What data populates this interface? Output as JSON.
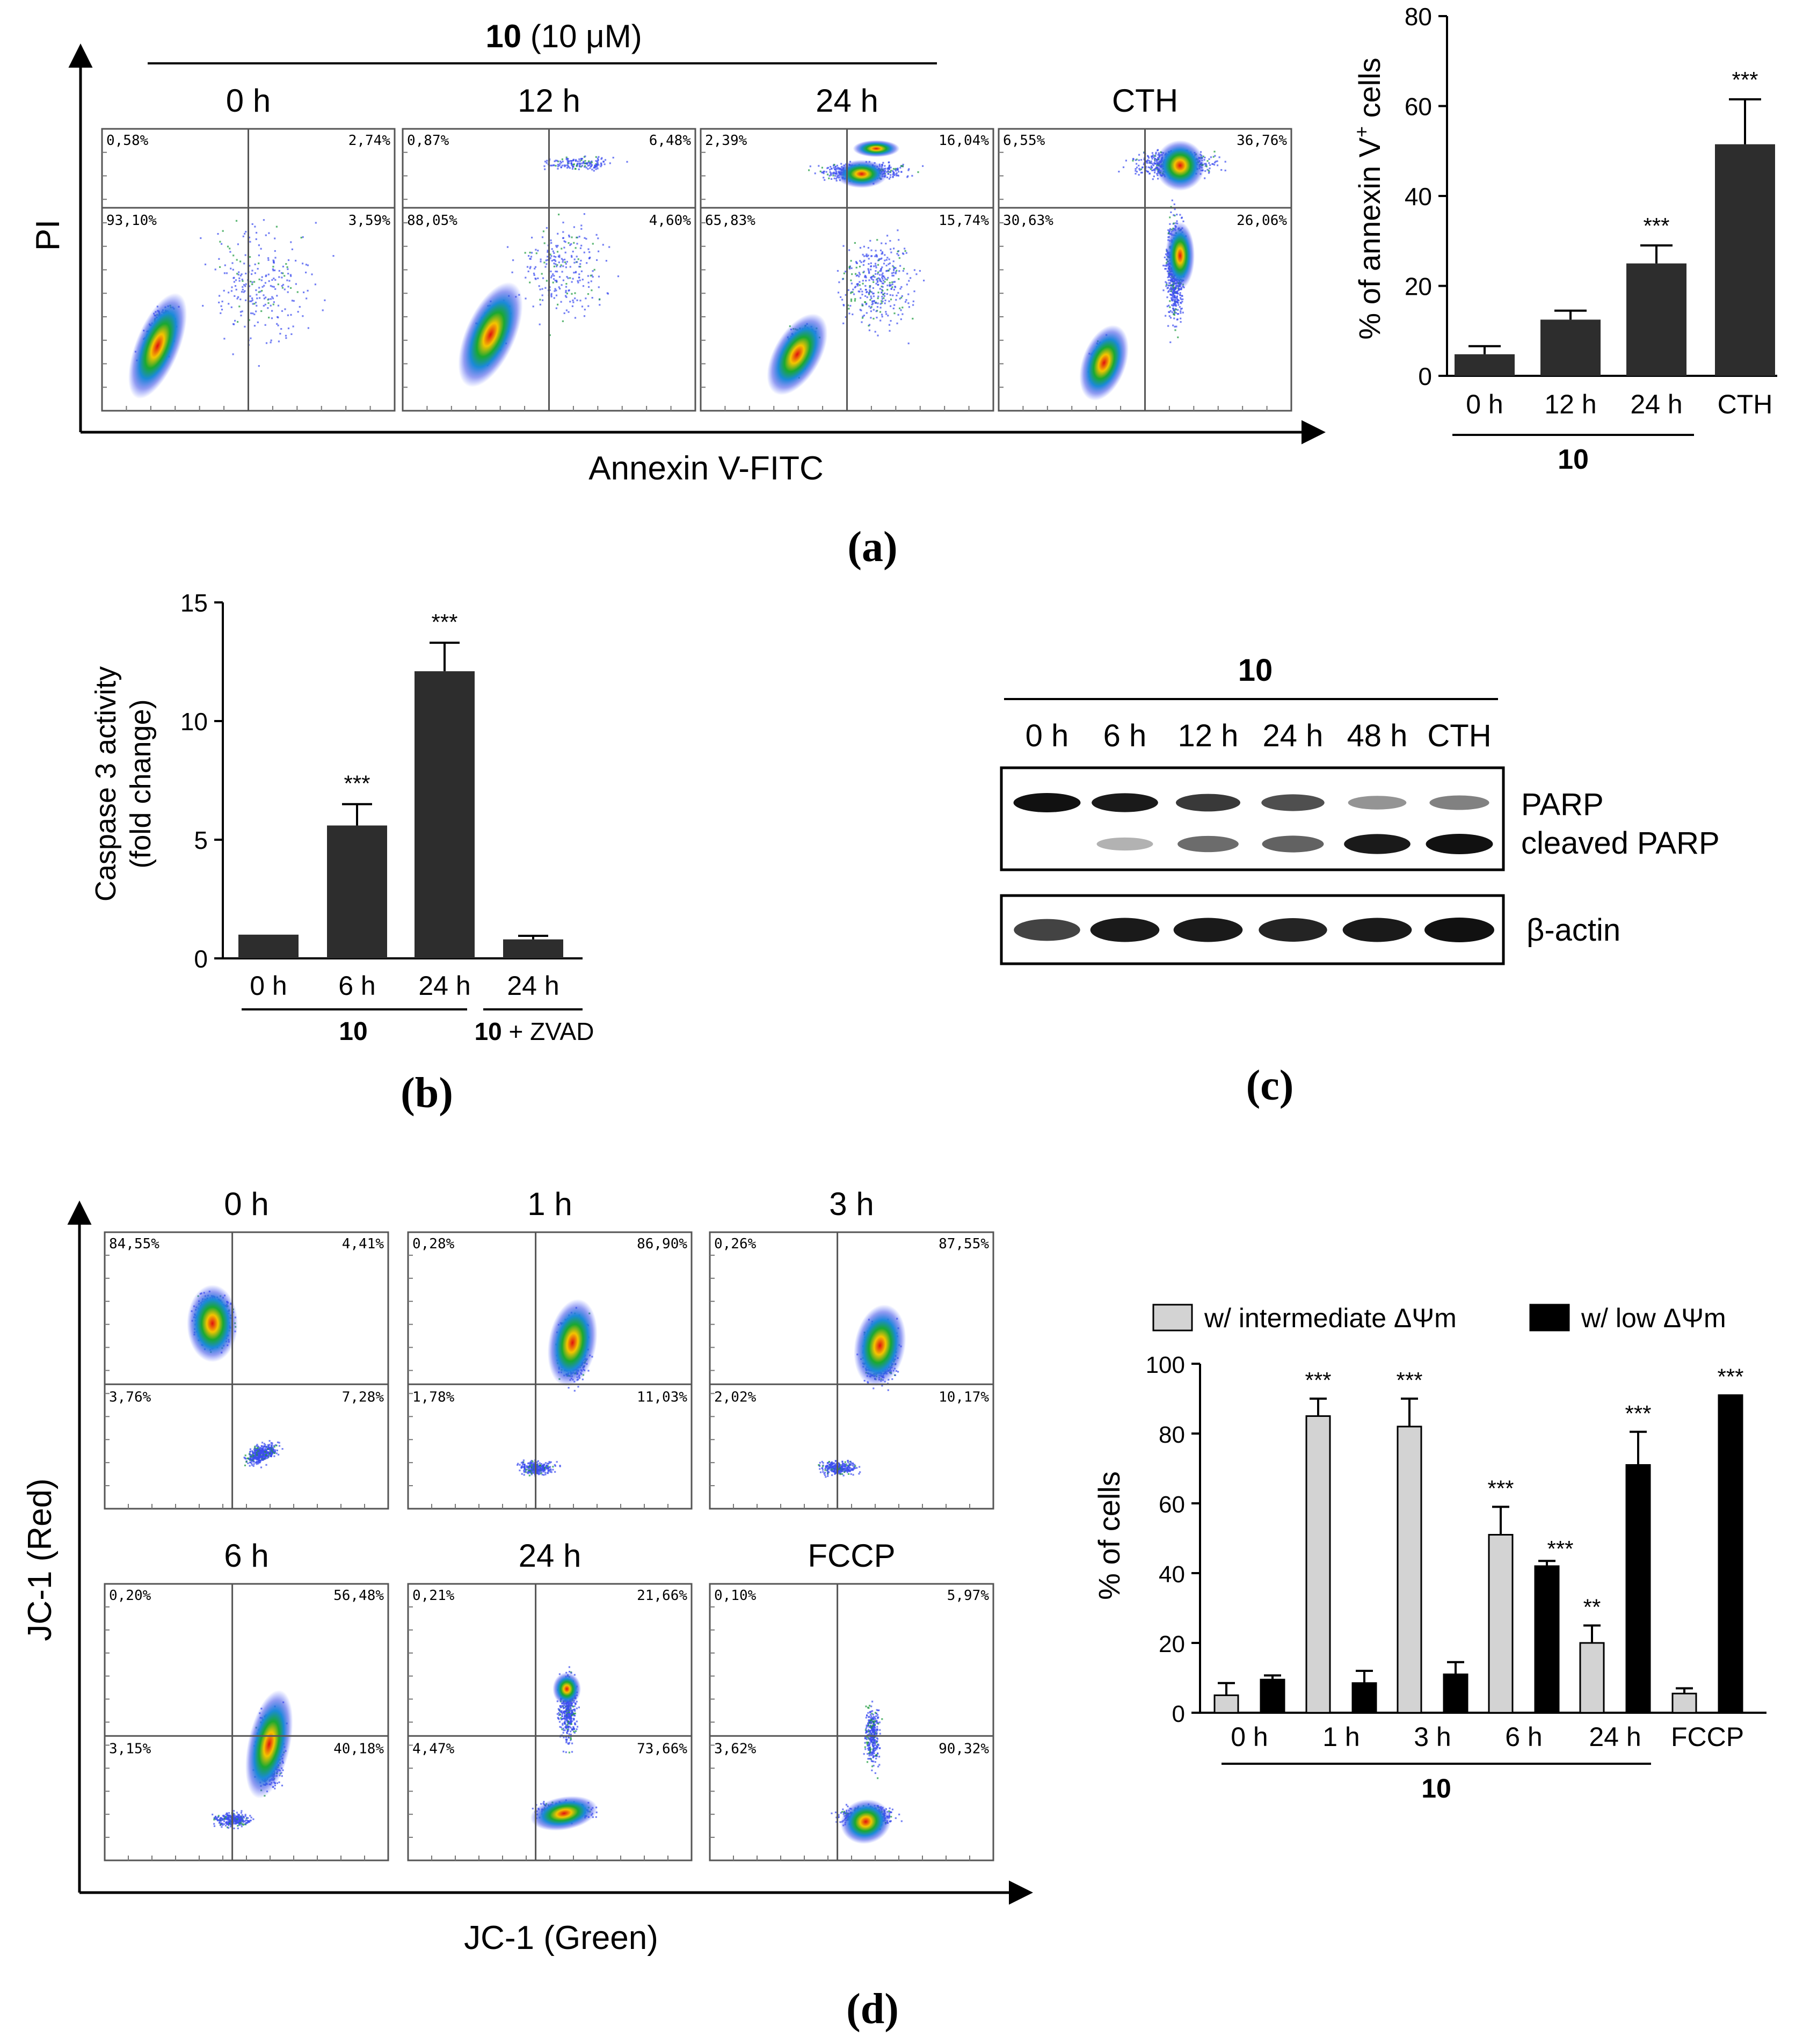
{
  "panel_a": {
    "header_bold": "10",
    "header_rest": " (10 μM)",
    "x_axis_label": "Annexin V-FITC",
    "y_axis_label": "PI",
    "caption": "(a)",
    "plots": [
      {
        "title": "0 h",
        "q_ul": "0,58%",
        "q_ur": "2,74%",
        "q_ll": "93,10%",
        "q_lr": "3,59%"
      },
      {
        "title": "12 h",
        "q_ul": "0,87%",
        "q_ur": "6,48%",
        "q_ll": "88,05%",
        "q_lr": "4,60%"
      },
      {
        "title": "24 h",
        "q_ul": "2,39%",
        "q_ur": "16,04%",
        "q_ll": "65,83%",
        "q_lr": "15,74%"
      },
      {
        "title": "CTH",
        "q_ul": "6,55%",
        "q_ur": "36,76%",
        "q_ll": "30,63%",
        "q_lr": "26,06%"
      }
    ]
  },
  "chart_data": [
    {
      "type": "bar",
      "panel": "a",
      "ylabel": "% of annexin V",
      "ylabel_sup": "+",
      "ylabel_end": " cells",
      "categories": [
        "0 h",
        "12 h",
        "24 h",
        "CTH"
      ],
      "values": [
        4.8,
        12.5,
        25.0,
        51.5
      ],
      "errors": [
        1.8,
        2.0,
        4.0,
        10.0
      ],
      "significance": [
        "",
        "",
        "***",
        "***"
      ],
      "ylim": [
        0,
        80
      ],
      "yticks": [
        "0",
        "20",
        "40",
        "60",
        "80"
      ],
      "group_label": "10",
      "color": "#2d2d2d"
    },
    {
      "type": "bar",
      "panel": "b",
      "ylabel_line1": "Caspase 3 activity",
      "ylabel_line2": "(fold change)",
      "categories": [
        "0 h",
        "6 h",
        "24 h",
        "24 h"
      ],
      "values": [
        1.0,
        5.6,
        12.1,
        0.8
      ],
      "errors": [
        0.0,
        0.9,
        1.2,
        0.15
      ],
      "significance": [
        "",
        "***",
        "***",
        ""
      ],
      "ylim": [
        0,
        15
      ],
      "yticks": [
        "0",
        "5",
        "10",
        "15"
      ],
      "group_label": "10",
      "group2_label_bold": "10",
      "group2_label_rest": " + ZVAD",
      "color": "#2d2d2d"
    },
    {
      "type": "bar",
      "panel": "d",
      "ylabel": "% of cells",
      "categories": [
        "0 h",
        "1 h",
        "3 h",
        "6 h",
        "24 h",
        "FCCP"
      ],
      "series": [
        {
          "name": "w/ intermediate ΔΨm",
          "values": [
            5,
            85,
            82,
            51,
            20,
            5.5
          ],
          "errors": [
            3.5,
            5,
            8,
            8,
            5,
            1.5
          ],
          "significance": [
            "",
            "***",
            "***",
            "***",
            "**",
            ""
          ],
          "color": "#d3d3d3"
        },
        {
          "name": "w/ low ΔΨm",
          "values": [
            9.5,
            8.5,
            11,
            42,
            71,
            91
          ],
          "errors": [
            1.2,
            3.5,
            3.5,
            1.5,
            9.5,
            0
          ],
          "significance": [
            "",
            "",
            "",
            "***",
            "***",
            "***"
          ],
          "color": "#000000"
        }
      ],
      "ylim": [
        0,
        100
      ],
      "yticks": [
        "0",
        "20",
        "40",
        "60",
        "80",
        "100"
      ],
      "group_label": "10"
    }
  ],
  "panel_b": {
    "caption": "(b)"
  },
  "panel_c": {
    "group_label": "10",
    "lanes": [
      "0 h",
      "6 h",
      "12 h",
      "24 h",
      "48 h",
      "CTH"
    ],
    "band_labels": [
      "PARP",
      "cleaved PARP",
      "β-actin"
    ],
    "parp_intensity": [
      1.0,
      0.95,
      0.8,
      0.7,
      0.35,
      0.45
    ],
    "cleaved_intensity": [
      0.0,
      0.2,
      0.55,
      0.6,
      0.95,
      1.0
    ],
    "actin_intensity": [
      0.75,
      0.95,
      0.95,
      0.9,
      0.95,
      1.0
    ],
    "caption": "(c)"
  },
  "panel_d": {
    "x_axis_label": "JC-1 (Green)",
    "y_axis_label": "JC-1 (Red)",
    "caption": "(d)",
    "plots": [
      {
        "title": "0 h",
        "q_ul": "84,55%",
        "q_ur": "4,41%",
        "q_ll": "3,76%",
        "q_lr": "7,28%"
      },
      {
        "title": "1 h",
        "q_ul": "0,28%",
        "q_ur": "86,90%",
        "q_ll": "1,78%",
        "q_lr": "11,03%"
      },
      {
        "title": "3 h",
        "q_ul": "0,26%",
        "q_ur": "87,55%",
        "q_ll": "2,02%",
        "q_lr": "10,17%"
      },
      {
        "title": "6 h",
        "q_ul": "0,20%",
        "q_ur": "56,48%",
        "q_ll": "3,15%",
        "q_lr": "40,18%"
      },
      {
        "title": "24 h",
        "q_ul": "0,21%",
        "q_ur": "21,66%",
        "q_ll": "4,47%",
        "q_lr": "73,66%"
      },
      {
        "title": "FCCP",
        "q_ul": "0,10%",
        "q_ur": "5,97%",
        "q_ll": "3,62%",
        "q_lr": "90,32%"
      }
    ]
  }
}
